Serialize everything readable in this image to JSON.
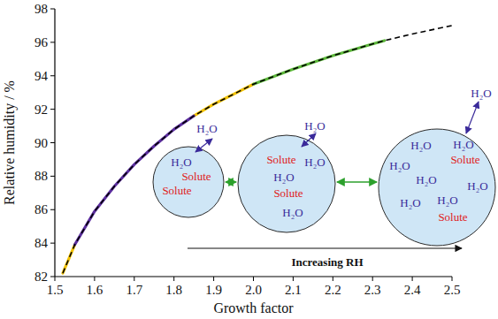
{
  "chart_data": {
    "type": "line",
    "x_label": "Growth factor",
    "y_label": "Relative humidity / %",
    "xlim": [
      1.5,
      2.5
    ],
    "ylim": [
      82,
      98
    ],
    "xticks": [
      1.5,
      1.6,
      1.7,
      1.8,
      1.9,
      {
        "value": 2,
        "label": "2.0"
      },
      2.1,
      2.2,
      2.3,
      2.4,
      2.5
    ],
    "yticks": [
      82,
      84,
      86,
      88,
      90,
      92,
      94,
      96,
      98
    ],
    "grid": false,
    "x": [
      1.52,
      1.55,
      1.6,
      1.65,
      1.7,
      1.75,
      1.8,
      1.85,
      1.9,
      1.95,
      2.0,
      2.1,
      2.2,
      2.3,
      2.33,
      2.4,
      2.5
    ],
    "series": [
      {
        "color": "#f2c200",
        "line_style": "solid",
        "values": [
          82.2,
          83.9,
          null,
          null,
          null,
          null,
          null,
          91.6,
          92.3,
          92.9,
          93.5,
          null,
          null,
          null,
          null,
          null,
          null
        ]
      },
      {
        "color": "#5b2d9e",
        "line_style": "solid",
        "values": [
          null,
          83.9,
          85.9,
          87.4,
          88.7,
          89.8,
          90.8,
          91.6,
          null,
          null,
          null,
          null,
          null,
          null,
          null,
          null,
          null
        ]
      },
      {
        "color": "#5cb83a",
        "line_style": "solid",
        "values": [
          null,
          null,
          null,
          null,
          null,
          null,
          null,
          null,
          null,
          null,
          93.5,
          94.4,
          95.2,
          95.9,
          96.1,
          null,
          null
        ]
      },
      {
        "color": "#000000",
        "line_style": "dashed",
        "values": [
          82.2,
          83.9,
          85.9,
          87.4,
          88.7,
          89.8,
          90.8,
          91.6,
          92.3,
          92.9,
          93.5,
          94.4,
          95.2,
          95.9,
          96.1,
          96.5,
          97.0
        ]
      }
    ],
    "annotations": {
      "droplets": [
        {
          "exchange": "H₂O",
          "contents": [
            "H₂O",
            "Solute",
            "Solute"
          ]
        },
        {
          "exchange": "H₂O",
          "contents": [
            "Solute",
            "H₂O",
            "H₂O",
            "Solute",
            "H₂O"
          ]
        },
        {
          "exchange": "H₂O",
          "contents": [
            "H₂O",
            "H₂O",
            "Solute",
            "H₂O",
            "H₂O",
            "H₂O",
            "H₂O",
            "H₂O",
            "Solute"
          ]
        }
      ],
      "arrow_label": "Increasing RH"
    }
  }
}
